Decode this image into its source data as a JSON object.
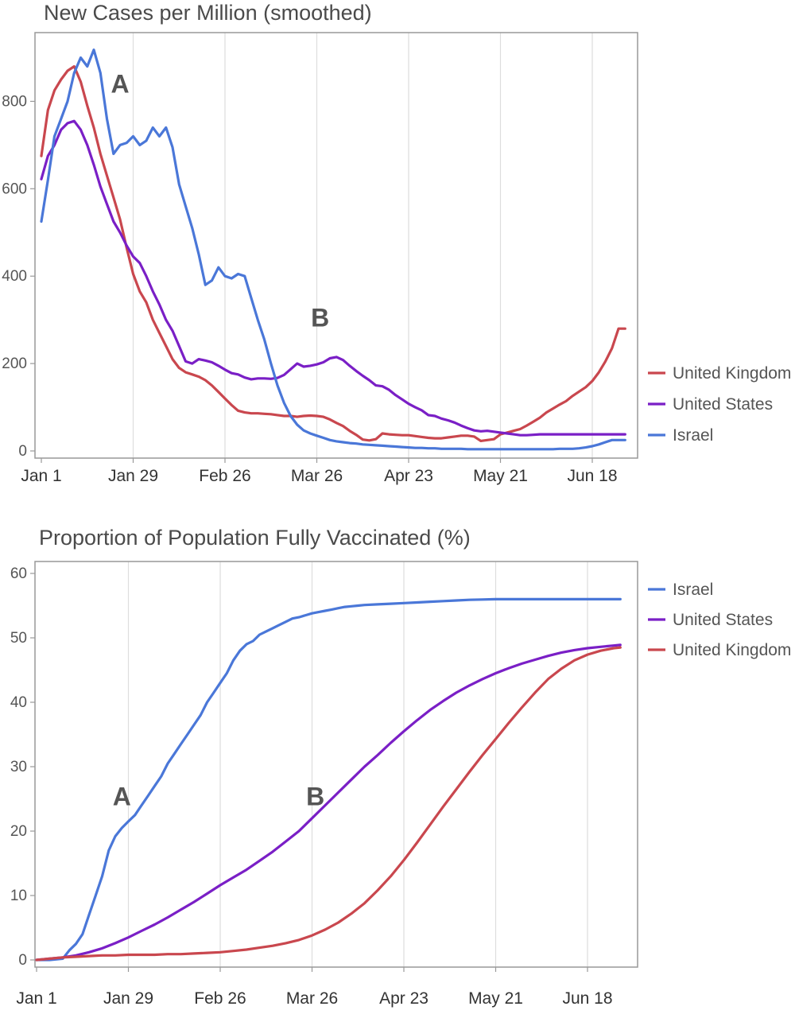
{
  "chart_data": [
    {
      "type": "line",
      "title": "New Cases per Million (smoothed)",
      "xlabel": "",
      "ylabel": "",
      "x_tick_labels": [
        "Jan 1",
        "Jan 29",
        "Feb 26",
        "Mar 26",
        "Apr 23",
        "May 21",
        "Jun 18"
      ],
      "x_tick_days": [
        0,
        28,
        56,
        84,
        112,
        140,
        168
      ],
      "x_range_days": [
        0,
        180
      ],
      "y_ticks": [
        0,
        200,
        400,
        600,
        800
      ],
      "ylim": [
        0,
        930
      ],
      "grid": "vertical",
      "legend_position": "right",
      "legend": [
        "United Kingdom",
        "United States",
        "Israel"
      ],
      "annotations": [
        {
          "text": "A",
          "day": 24,
          "value": 820
        },
        {
          "text": "B",
          "day": 85,
          "value": 285
        }
      ],
      "series": [
        {
          "name": "United Kingdom",
          "color": "#c9474e",
          "x": [
            0,
            2,
            4,
            6,
            8,
            10,
            12,
            14,
            16,
            18,
            20,
            22,
            24,
            26,
            28,
            30,
            32,
            34,
            36,
            38,
            40,
            42,
            44,
            46,
            48,
            50,
            52,
            54,
            56,
            58,
            60,
            62,
            64,
            66,
            68,
            70,
            72,
            74,
            76,
            78,
            80,
            82,
            84,
            86,
            88,
            90,
            92,
            94,
            96,
            98,
            100,
            102,
            104,
            106,
            108,
            110,
            112,
            114,
            116,
            118,
            120,
            122,
            124,
            126,
            128,
            130,
            132,
            134,
            136,
            138,
            140,
            142,
            144,
            146,
            148,
            150,
            152,
            154,
            156,
            158,
            160,
            162,
            164,
            166,
            168,
            170,
            172,
            174,
            176,
            178
          ],
          "values": [
            675,
            780,
            825,
            850,
            870,
            880,
            845,
            790,
            740,
            680,
            630,
            580,
            530,
            465,
            405,
            365,
            340,
            300,
            270,
            240,
            210,
            190,
            180,
            175,
            170,
            162,
            150,
            135,
            120,
            105,
            92,
            88,
            86,
            86,
            85,
            84,
            82,
            80,
            80,
            78,
            80,
            81,
            80,
            78,
            72,
            64,
            57,
            46,
            37,
            26,
            24,
            27,
            40,
            38,
            37,
            36,
            36,
            34,
            32,
            30,
            29,
            29,
            31,
            33,
            35,
            35,
            33,
            23,
            25,
            27,
            38,
            42,
            46,
            50,
            58,
            67,
            76,
            88,
            97,
            106,
            114,
            126,
            136,
            146,
            160,
            180,
            205,
            235,
            280,
            280
          ]
        },
        {
          "name": "United States",
          "color": "#7a1fc6",
          "x": [
            0,
            2,
            4,
            6,
            8,
            10,
            12,
            14,
            16,
            18,
            20,
            22,
            24,
            26,
            28,
            30,
            32,
            34,
            36,
            38,
            40,
            42,
            44,
            46,
            48,
            50,
            52,
            54,
            56,
            58,
            60,
            62,
            64,
            66,
            68,
            70,
            72,
            74,
            76,
            78,
            80,
            82,
            84,
            86,
            88,
            90,
            92,
            94,
            96,
            98,
            100,
            102,
            104,
            106,
            108,
            110,
            112,
            114,
            116,
            118,
            120,
            122,
            124,
            126,
            128,
            130,
            132,
            134,
            136,
            138,
            140,
            142,
            144,
            146,
            148,
            150,
            152,
            154,
            156,
            158,
            160,
            162,
            164,
            166,
            168,
            170,
            172,
            174,
            176,
            178
          ],
          "values": [
            622,
            675,
            700,
            735,
            750,
            755,
            735,
            700,
            655,
            605,
            565,
            525,
            500,
            470,
            445,
            430,
            400,
            365,
            335,
            300,
            275,
            240,
            205,
            200,
            210,
            207,
            203,
            195,
            186,
            178,
            175,
            168,
            164,
            166,
            166,
            165,
            167,
            174,
            187,
            200,
            193,
            195,
            198,
            203,
            212,
            215,
            208,
            195,
            183,
            172,
            162,
            150,
            148,
            140,
            128,
            118,
            108,
            100,
            93,
            82,
            80,
            74,
            70,
            65,
            58,
            52,
            47,
            45,
            46,
            44,
            42,
            40,
            38,
            36,
            36,
            37,
            38,
            38,
            38,
            38,
            38,
            38,
            38,
            38,
            38,
            38,
            38,
            38,
            38,
            38
          ]
        },
        {
          "name": "Israel",
          "color": "#4a77d8",
          "x": [
            0,
            2,
            4,
            6,
            8,
            10,
            12,
            14,
            16,
            18,
            20,
            22,
            24,
            26,
            28,
            30,
            32,
            34,
            36,
            38,
            40,
            42,
            44,
            46,
            48,
            50,
            52,
            54,
            56,
            58,
            60,
            62,
            64,
            66,
            68,
            70,
            72,
            74,
            76,
            78,
            80,
            82,
            84,
            86,
            88,
            90,
            92,
            94,
            96,
            98,
            100,
            102,
            104,
            106,
            108,
            110,
            112,
            114,
            116,
            118,
            120,
            122,
            124,
            126,
            128,
            130,
            132,
            134,
            136,
            138,
            140,
            142,
            144,
            146,
            148,
            150,
            152,
            154,
            156,
            158,
            160,
            162,
            164,
            166,
            168,
            170,
            172,
            174,
            176,
            178
          ],
          "values": [
            525,
            620,
            720,
            760,
            800,
            865,
            900,
            880,
            918,
            865,
            760,
            680,
            700,
            705,
            720,
            700,
            710,
            740,
            720,
            740,
            695,
            610,
            560,
            510,
            450,
            380,
            390,
            420,
            400,
            395,
            405,
            400,
            350,
            300,
            255,
            200,
            150,
            110,
            80,
            60,
            47,
            40,
            35,
            30,
            25,
            22,
            20,
            18,
            17,
            15,
            14,
            13,
            12,
            11,
            10,
            9,
            8,
            7,
            7,
            6,
            6,
            5,
            5,
            5,
            5,
            4,
            4,
            4,
            4,
            4,
            4,
            4,
            4,
            4,
            4,
            4,
            4,
            4,
            4,
            5,
            5,
            5,
            6,
            8,
            11,
            15,
            20,
            25,
            25,
            25
          ]
        }
      ]
    },
    {
      "type": "line",
      "title": "Proportion of Population Fully Vaccinated (%)",
      "xlabel": "",
      "ylabel": "",
      "x_tick_labels": [
        "Jan 1",
        "Jan 29",
        "Feb 26",
        "Mar 26",
        "Apr 23",
        "May 21",
        "Jun 18"
      ],
      "x_tick_days": [
        0,
        28,
        56,
        84,
        112,
        140,
        168
      ],
      "x_range_days": [
        0,
        180
      ],
      "y_ticks": [
        0,
        10,
        20,
        30,
        40,
        50,
        60
      ],
      "ylim": [
        0,
        60
      ],
      "grid": "vertical",
      "legend_position": "right",
      "legend": [
        "Israel",
        "United States",
        "United Kingdom"
      ],
      "annotations": [
        {
          "text": "A",
          "day": 26,
          "value": 24
        },
        {
          "text": "B",
          "day": 85,
          "value": 24
        }
      ],
      "series": [
        {
          "name": "Israel",
          "color": "#4a77d8",
          "x": [
            0,
            4,
            8,
            10,
            12,
            14,
            16,
            18,
            20,
            22,
            24,
            26,
            28,
            30,
            32,
            34,
            36,
            38,
            40,
            42,
            44,
            46,
            48,
            50,
            52,
            54,
            56,
            58,
            60,
            62,
            64,
            66,
            68,
            70,
            72,
            74,
            76,
            78,
            80,
            82,
            84,
            86,
            88,
            90,
            92,
            94,
            96,
            98,
            100,
            104,
            108,
            112,
            116,
            120,
            124,
            128,
            132,
            136,
            140,
            144,
            148,
            152,
            156,
            160,
            164,
            168,
            172,
            176,
            178
          ],
          "values": [
            0,
            0,
            0.2,
            1.5,
            2.5,
            4,
            7,
            10,
            13,
            17,
            19.2,
            20.5,
            21.5,
            22.5,
            24,
            25.5,
            27,
            28.5,
            30.5,
            32,
            33.5,
            35,
            36.5,
            38,
            40,
            41.5,
            43,
            44.5,
            46.5,
            48,
            49,
            49.5,
            50.5,
            51,
            51.5,
            52,
            52.5,
            53,
            53.2,
            53.5,
            53.8,
            54,
            54.2,
            54.4,
            54.6,
            54.8,
            54.9,
            55,
            55.1,
            55.2,
            55.3,
            55.4,
            55.5,
            55.6,
            55.7,
            55.8,
            55.9,
            55.95,
            56,
            56,
            56,
            56,
            56,
            56,
            56,
            56,
            56,
            56,
            56
          ]
        },
        {
          "name": "United States",
          "color": "#7a1fc6",
          "x": [
            0,
            4,
            8,
            12,
            16,
            20,
            24,
            28,
            32,
            36,
            40,
            44,
            48,
            52,
            56,
            60,
            64,
            68,
            72,
            76,
            80,
            84,
            88,
            92,
            96,
            100,
            104,
            108,
            112,
            116,
            120,
            124,
            128,
            132,
            136,
            140,
            144,
            148,
            152,
            156,
            160,
            164,
            168,
            172,
            176,
            178
          ],
          "values": [
            0,
            0.2,
            0.4,
            0.7,
            1.2,
            1.8,
            2.6,
            3.5,
            4.5,
            5.5,
            6.6,
            7.8,
            9,
            10.3,
            11.6,
            12.8,
            14,
            15.4,
            16.8,
            18.4,
            20,
            22,
            24,
            26,
            28,
            30,
            31.8,
            33.7,
            35.5,
            37.2,
            38.8,
            40.2,
            41.5,
            42.6,
            43.6,
            44.5,
            45.3,
            46,
            46.6,
            47.2,
            47.7,
            48.1,
            48.4,
            48.6,
            48.8,
            48.9
          ]
        },
        {
          "name": "United Kingdom",
          "color": "#c9474e",
          "x": [
            0,
            4,
            8,
            12,
            16,
            20,
            24,
            28,
            32,
            36,
            40,
            44,
            48,
            52,
            56,
            60,
            64,
            68,
            72,
            76,
            80,
            84,
            88,
            92,
            96,
            100,
            104,
            108,
            112,
            116,
            120,
            124,
            128,
            132,
            136,
            140,
            144,
            148,
            152,
            156,
            160,
            164,
            168,
            172,
            176,
            178
          ],
          "values": [
            0,
            0.2,
            0.4,
            0.5,
            0.6,
            0.7,
            0.7,
            0.8,
            0.8,
            0.8,
            0.9,
            0.9,
            1,
            1.1,
            1.2,
            1.4,
            1.6,
            1.9,
            2.2,
            2.6,
            3.1,
            3.8,
            4.7,
            5.8,
            7.2,
            8.8,
            10.8,
            13,
            15.5,
            18.2,
            21,
            23.8,
            26.5,
            29.2,
            31.8,
            34.3,
            36.8,
            39.2,
            41.5,
            43.6,
            45.2,
            46.5,
            47.4,
            48,
            48.4,
            48.5
          ]
        }
      ]
    }
  ]
}
